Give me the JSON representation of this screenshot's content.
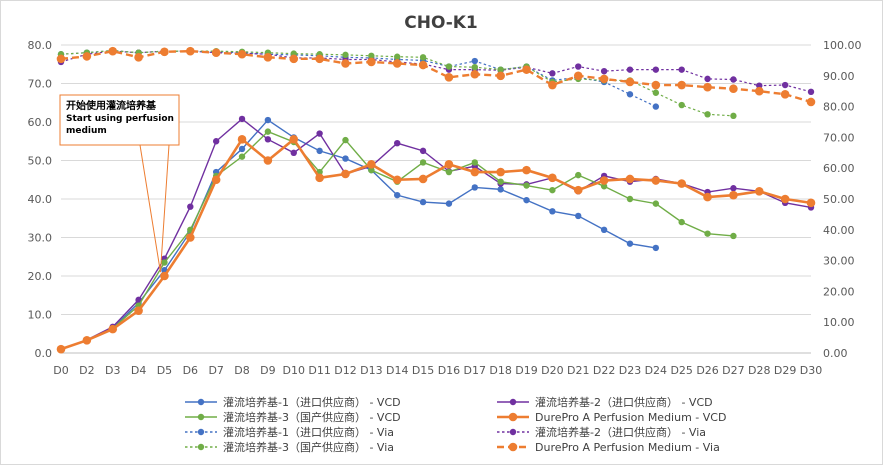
{
  "chart_data": {
    "type": "line",
    "title": "CHO-K1",
    "categories": [
      "D0",
      "D2",
      "D3",
      "D4",
      "D5",
      "D6",
      "D7",
      "D8",
      "D9",
      "D10",
      "D11",
      "D12",
      "D13",
      "D14",
      "D15",
      "D16",
      "D17",
      "D18",
      "D19",
      "D20",
      "D21",
      "D22",
      "D23",
      "D24",
      "D25",
      "D26",
      "D27",
      "D28",
      "D29",
      "D30"
    ],
    "y_left": {
      "min": 0,
      "max": 80,
      "step": 10,
      "tick_labels": [
        "0.0",
        "10.0",
        "20.0",
        "30.0",
        "40.0",
        "50.0",
        "60.0",
        "70.0",
        "80.0"
      ]
    },
    "y_right": {
      "min": 0,
      "max": 100,
      "step": 10,
      "tick_labels": [
        "0.00",
        "10.00",
        "20.00",
        "30.00",
        "40.00",
        "50.00",
        "60.00",
        "70.00",
        "80.00",
        "90.00",
        "100.00"
      ]
    },
    "series": [
      {
        "name": "灌流培养基-1（进口供应商） - VCD",
        "axis": "left",
        "color": "#4472C4",
        "dash": false,
        "values": [
          1.0,
          3.3,
          6.5,
          13.0,
          21.5,
          31.5,
          47.0,
          53.0,
          60.5,
          56.0,
          52.5,
          50.5,
          47.5,
          41.0,
          39.2,
          38.8,
          43.0,
          42.5,
          39.7,
          36.8,
          35.6,
          32.0,
          28.4,
          27.3,
          null,
          null,
          null,
          null,
          null,
          null
        ]
      },
      {
        "name": "灌流培养基-2（进口供应商） - VCD",
        "axis": "left",
        "color": "#7030A0",
        "dash": false,
        "values": [
          1.0,
          3.4,
          6.8,
          13.8,
          24.5,
          38.0,
          55.0,
          60.8,
          55.5,
          52.0,
          57.0,
          46.5,
          48.5,
          54.5,
          52.5,
          47.2,
          48.5,
          44.0,
          43.8,
          45.5,
          42.0,
          46.0,
          44.5,
          45.2,
          44.0,
          41.8,
          42.8,
          42.0,
          39.0,
          37.8
        ]
      },
      {
        "name": "灌流培养基-3（国产供应商） - VCD",
        "axis": "left",
        "color": "#70AD47",
        "dash": false,
        "values": [
          1.0,
          3.3,
          6.4,
          12.3,
          23.5,
          32.0,
          46.0,
          51.0,
          57.5,
          54.8,
          47.0,
          55.3,
          47.5,
          44.5,
          49.5,
          47.0,
          49.5,
          44.5,
          43.5,
          42.3,
          46.2,
          43.3,
          40.0,
          38.8,
          34.0,
          31.0,
          30.4,
          null,
          null,
          null
        ]
      },
      {
        "name": "DurePro A Perfusion Medium - VCD",
        "axis": "left",
        "color": "#ED7D31",
        "dash": false,
        "values": [
          1.0,
          3.3,
          6.2,
          11.0,
          20.0,
          30.0,
          45.0,
          55.5,
          50.0,
          55.5,
          45.5,
          46.5,
          49.0,
          45.0,
          45.2,
          49.0,
          47.0,
          47.0,
          47.5,
          45.5,
          42.3,
          44.8,
          45.2,
          44.8,
          44.0,
          40.5,
          41.0,
          42.0,
          40.0,
          39.0
        ]
      },
      {
        "name": "灌流培养基-1（进口供应商） - Via",
        "axis": "right",
        "color": "#4472C4",
        "dash": true,
        "values": [
          97.0,
          97.5,
          98.2,
          97.5,
          98.0,
          98.0,
          97.8,
          97.5,
          97.0,
          96.8,
          96.5,
          96.0,
          95.8,
          95.3,
          95.0,
          93.0,
          94.8,
          92.0,
          93.0,
          88.5,
          89.5,
          88.0,
          84.0,
          80.0,
          null,
          null,
          null,
          null,
          null,
          null
        ]
      },
      {
        "name": "灌流培养基-2（进口供应商） - Via",
        "axis": "right",
        "color": "#7030A0",
        "dash": true,
        "values": [
          94.5,
          97.0,
          98.0,
          97.5,
          98.0,
          98.0,
          97.5,
          97.3,
          97.0,
          95.8,
          95.8,
          95.3,
          95.3,
          94.5,
          93.8,
          92.0,
          92.0,
          91.8,
          92.8,
          90.8,
          93.0,
          91.5,
          92.0,
          92.0,
          92.0,
          89.0,
          88.8,
          86.8,
          87.0,
          84.8
        ]
      },
      {
        "name": "灌流培养基-3（国产供应商） - Via",
        "axis": "right",
        "color": "#70AD47",
        "dash": true,
        "values": [
          97.0,
          97.5,
          98.2,
          97.5,
          98.0,
          98.0,
          98.0,
          97.8,
          97.5,
          97.2,
          97.0,
          96.8,
          96.5,
          96.2,
          96.0,
          93.0,
          92.8,
          92.0,
          93.0,
          88.0,
          89.0,
          88.5,
          88.5,
          84.5,
          80.5,
          77.5,
          77.0,
          null,
          null,
          null
        ]
      },
      {
        "name": "DurePro A Perfusion Medium - Via",
        "axis": "right",
        "color": "#ED7D31",
        "dash": true,
        "values": [
          95.5,
          96.3,
          98.0,
          96.0,
          97.8,
          98.0,
          97.5,
          97.0,
          96.0,
          95.5,
          95.5,
          94.0,
          94.5,
          94.0,
          93.5,
          89.5,
          90.5,
          90.0,
          92.0,
          87.0,
          90.0,
          89.0,
          88.0,
          87.0,
          87.0,
          86.3,
          85.8,
          85.0,
          84.0,
          81.5
        ]
      }
    ],
    "legend_position": "bottom",
    "grid": true,
    "annotation": {
      "text_cn": "开始使用灌流培养基",
      "text_en": "Start using perfusion medium",
      "points_to": "D5"
    }
  }
}
